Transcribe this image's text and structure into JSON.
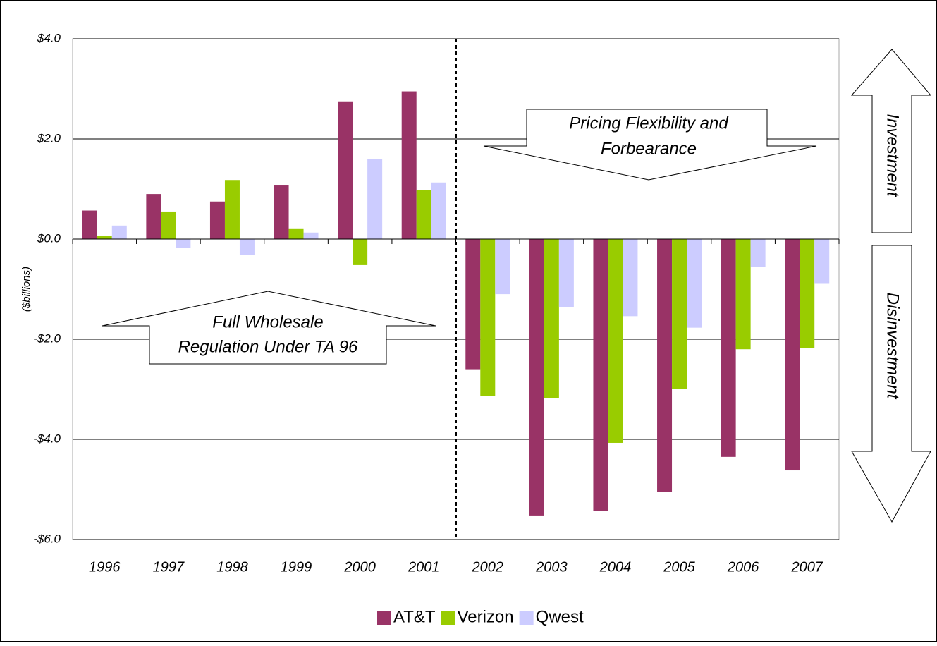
{
  "chart_data": {
    "type": "bar",
    "y_label": "($billions)",
    "categories": [
      "1996",
      "1997",
      "1998",
      "1999",
      "2000",
      "2001",
      "2002",
      "2003",
      "2004",
      "2005",
      "2006",
      "2007"
    ],
    "series": [
      {
        "name": "AT&T",
        "color": "#993366",
        "values": [
          0.57,
          0.9,
          0.75,
          1.07,
          2.75,
          2.95,
          -2.6,
          -5.52,
          -5.43,
          -5.05,
          -4.35,
          -4.62
        ]
      },
      {
        "name": "Verizon",
        "color": "#99cc00",
        "values": [
          0.07,
          0.55,
          1.18,
          0.2,
          -0.52,
          0.98,
          -3.13,
          -3.18,
          -4.07,
          -3.0,
          -2.2,
          -2.17
        ]
      },
      {
        "name": "Qwest",
        "color": "#ccccff",
        "values": [
          0.27,
          -0.17,
          -0.31,
          0.13,
          1.6,
          1.13,
          -1.1,
          -1.36,
          -1.54,
          -1.77,
          -0.56,
          -0.88
        ]
      }
    ],
    "ylim": [
      -6,
      4
    ],
    "yticks": [
      {
        "value": -6,
        "label": "-$6.0"
      },
      {
        "value": -4,
        "label": "-$4.0"
      },
      {
        "value": -2,
        "label": "-$2.0"
      },
      {
        "value": 0,
        "label": "$0.0"
      },
      {
        "value": 2,
        "label": "$2.0"
      },
      {
        "value": 4,
        "label": "$4.0"
      }
    ],
    "grid": true,
    "annotations": {
      "full_wholesale": [
        "Full Wholesale",
        "Regulation Under TA 96"
      ],
      "pricing_flexibility": [
        "Pricing Flexibility and",
        "Forbearance"
      ],
      "investment": "Investment",
      "disinvestment": "Disinvestment"
    }
  }
}
